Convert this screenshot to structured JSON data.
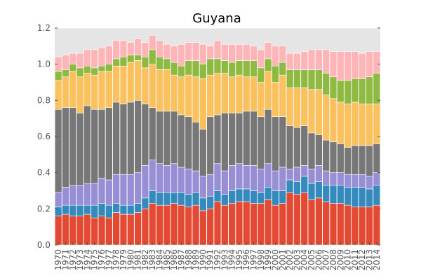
{
  "chart_data": {
    "type": "bar",
    "stacked": true,
    "title": "Guyana",
    "xlabel": "",
    "ylabel": "",
    "ylim": [
      0,
      1.2
    ],
    "yticks": [
      0.0,
      0.2,
      0.4,
      0.6,
      0.8,
      1.0,
      1.2
    ],
    "ytick_labels": [
      "0.0",
      "0.2",
      "0.4",
      "0.6",
      "0.8",
      "1.0",
      "1.2"
    ],
    "grid": true,
    "legend": "none",
    "categories": [
      "1970",
      "1971",
      "1972",
      "1973",
      "1974",
      "1975",
      "1976",
      "1977",
      "1978",
      "1979",
      "1980",
      "1981",
      "1982",
      "1983",
      "1984",
      "1985",
      "1986",
      "1987",
      "1988",
      "1989",
      "1990",
      "1991",
      "1992",
      "1993",
      "1994",
      "1995",
      "1996",
      "1997",
      "1998",
      "1999",
      "2000",
      "2001",
      "2002",
      "2003",
      "2004",
      "2005",
      "2006",
      "2007",
      "2008",
      "2009",
      "2010",
      "2011",
      "2012",
      "2013",
      "2014"
    ],
    "series": [
      {
        "color": "#e24a33",
        "values": [
          0.16,
          0.17,
          0.16,
          0.16,
          0.17,
          0.15,
          0.16,
          0.15,
          0.18,
          0.17,
          0.17,
          0.18,
          0.2,
          0.23,
          0.22,
          0.22,
          0.23,
          0.22,
          0.21,
          0.22,
          0.19,
          0.2,
          0.24,
          0.22,
          0.23,
          0.24,
          0.24,
          0.23,
          0.23,
          0.25,
          0.22,
          0.23,
          0.29,
          0.28,
          0.29,
          0.25,
          0.26,
          0.24,
          0.23,
          0.23,
          0.22,
          0.21,
          0.21,
          0.21,
          0.22
        ]
      },
      {
        "color": "#348abd",
        "values": [
          0.05,
          0.05,
          0.06,
          0.06,
          0.05,
          0.07,
          0.07,
          0.07,
          0.05,
          0.05,
          0.05,
          0.05,
          0.06,
          0.07,
          0.07,
          0.07,
          0.06,
          0.07,
          0.07,
          0.07,
          0.07,
          0.07,
          0.06,
          0.06,
          0.07,
          0.07,
          0.07,
          0.07,
          0.06,
          0.07,
          0.08,
          0.07,
          0.07,
          0.07,
          0.09,
          0.09,
          0.09,
          0.09,
          0.1,
          0.1,
          0.1,
          0.11,
          0.11,
          0.1,
          0.11
        ]
      },
      {
        "color": "#988ed5",
        "values": [
          0.08,
          0.1,
          0.11,
          0.11,
          0.12,
          0.12,
          0.14,
          0.14,
          0.16,
          0.17,
          0.17,
          0.17,
          0.18,
          0.17,
          0.16,
          0.15,
          0.16,
          0.14,
          0.14,
          0.12,
          0.12,
          0.12,
          0.15,
          0.13,
          0.14,
          0.14,
          0.13,
          0.14,
          0.13,
          0.13,
          0.11,
          0.13,
          0.06,
          0.08,
          0.06,
          0.08,
          0.09,
          0.08,
          0.07,
          0.07,
          0.07,
          0.07,
          0.07,
          0.07,
          0.07
        ]
      },
      {
        "color": "#777777",
        "values": [
          0.46,
          0.44,
          0.43,
          0.4,
          0.43,
          0.41,
          0.38,
          0.4,
          0.4,
          0.39,
          0.4,
          0.4,
          0.34,
          0.29,
          0.29,
          0.3,
          0.29,
          0.29,
          0.29,
          0.27,
          0.26,
          0.32,
          0.27,
          0.32,
          0.29,
          0.28,
          0.3,
          0.3,
          0.29,
          0.3,
          0.3,
          0.28,
          0.24,
          0.22,
          0.22,
          0.2,
          0.17,
          0.17,
          0.17,
          0.16,
          0.15,
          0.16,
          0.16,
          0.17,
          0.16
        ]
      },
      {
        "color": "#fbc15e",
        "values": [
          0.16,
          0.17,
          0.2,
          0.2,
          0.18,
          0.19,
          0.21,
          0.2,
          0.2,
          0.21,
          0.22,
          0.22,
          0.2,
          0.24,
          0.23,
          0.23,
          0.2,
          0.21,
          0.23,
          0.25,
          0.28,
          0.23,
          0.23,
          0.22,
          0.2,
          0.21,
          0.19,
          0.19,
          0.19,
          0.21,
          0.19,
          0.23,
          0.21,
          0.22,
          0.21,
          0.24,
          0.25,
          0.25,
          0.24,
          0.23,
          0.24,
          0.24,
          0.23,
          0.23,
          0.22
        ]
      },
      {
        "color": "#8eba42",
        "values": [
          0.05,
          0.04,
          0.04,
          0.05,
          0.04,
          0.04,
          0.03,
          0.04,
          0.04,
          0.05,
          0.04,
          0.03,
          0.06,
          0.08,
          0.07,
          0.06,
          0.07,
          0.06,
          0.08,
          0.09,
          0.08,
          0.09,
          0.08,
          0.07,
          0.08,
          0.08,
          0.09,
          0.09,
          0.08,
          0.07,
          0.09,
          0.07,
          0.1,
          0.1,
          0.1,
          0.11,
          0.11,
          0.12,
          0.12,
          0.12,
          0.13,
          0.13,
          0.14,
          0.15,
          0.17
        ]
      },
      {
        "color": "#ffb5b8",
        "values": [
          0.08,
          0.08,
          0.06,
          0.08,
          0.09,
          0.1,
          0.1,
          0.1,
          0.1,
          0.09,
          0.07,
          0.09,
          0.08,
          0.08,
          0.09,
          0.08,
          0.09,
          0.12,
          0.1,
          0.1,
          0.11,
          0.07,
          0.1,
          0.09,
          0.1,
          0.09,
          0.09,
          0.08,
          0.1,
          0.09,
          0.11,
          0.09,
          0.09,
          0.09,
          0.1,
          0.11,
          0.11,
          0.13,
          0.14,
          0.16,
          0.16,
          0.15,
          0.14,
          0.14,
          0.12
        ]
      }
    ]
  }
}
